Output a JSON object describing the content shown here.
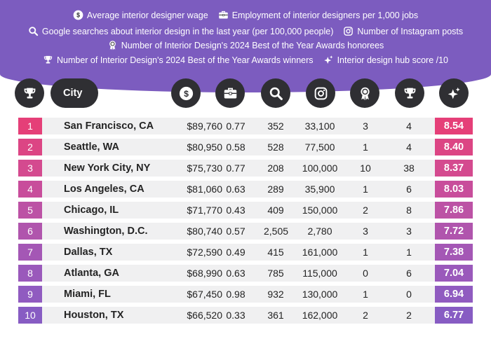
{
  "legend": {
    "wage": "Average interior designer wage",
    "employment": "Employment of interior designers per 1,000 jobs",
    "searches": "Google searches about interior design in the last year (per 100,000 people)",
    "instagram": "Number of Instagram posts",
    "honorees": "Number of Interior Design's 2024 Best of the Year Awards honorees",
    "winners": "Number of Interior Design's 2024 Best of the Year Awards winners",
    "score": "Interior design hub score /10"
  },
  "header": {
    "city_label": "City"
  },
  "icons": {
    "rank": "trophy-icon",
    "wage": "dollar-icon",
    "employment": "briefcase-icon",
    "searches": "search-icon",
    "instagram": "instagram-icon",
    "honorees": "award-ribbon-icon",
    "winners": "trophy-icon",
    "score": "sparkle-star-icon"
  },
  "colors": {
    "banner": "#7c5cbf",
    "header_dark": "#2f2f33",
    "row_bg": "#f0f0f1",
    "rank_palette": [
      "#e53f78",
      "#dc4584",
      "#d44a8f",
      "#c84d9b",
      "#bc52a5",
      "#b055ad",
      "#a457b5",
      "#9a59bb",
      "#905bc0",
      "#875cc3"
    ]
  },
  "table": {
    "rows": [
      {
        "rank": "1",
        "city": "San Francisco, CA",
        "wage": "$89,760",
        "employment": "0.77",
        "searches": "352",
        "instagram": "33,100",
        "honorees": "3",
        "winners": "4",
        "score": "8.54"
      },
      {
        "rank": "2",
        "city": "Seattle, WA",
        "wage": "$80,950",
        "employment": "0.58",
        "searches": "528",
        "instagram": "77,500",
        "honorees": "1",
        "winners": "4",
        "score": "8.40"
      },
      {
        "rank": "3",
        "city": "New York City, NY",
        "wage": "$75,730",
        "employment": "0.77",
        "searches": "208",
        "instagram": "100,000",
        "honorees": "10",
        "winners": "38",
        "score": "8.37"
      },
      {
        "rank": "4",
        "city": "Los Angeles, CA",
        "wage": "$81,060",
        "employment": "0.63",
        "searches": "289",
        "instagram": "35,900",
        "honorees": "1",
        "winners": "6",
        "score": "8.03"
      },
      {
        "rank": "5",
        "city": "Chicago, IL",
        "wage": "$71,770",
        "employment": "0.43",
        "searches": "409",
        "instagram": "150,000",
        "honorees": "2",
        "winners": "8",
        "score": "7.86"
      },
      {
        "rank": "6",
        "city": "Washington, D.C.",
        "wage": "$80,740",
        "employment": "0.57",
        "searches": "2,505",
        "instagram": "2,780",
        "honorees": "3",
        "winners": "3",
        "score": "7.72"
      },
      {
        "rank": "7",
        "city": "Dallas, TX",
        "wage": "$72,590",
        "employment": "0.49",
        "searches": "415",
        "instagram": "161,000",
        "honorees": "1",
        "winners": "1",
        "score": "7.38"
      },
      {
        "rank": "8",
        "city": "Atlanta, GA",
        "wage": "$68,990",
        "employment": "0.63",
        "searches": "785",
        "instagram": "115,000",
        "honorees": "0",
        "winners": "6",
        "score": "7.04"
      },
      {
        "rank": "9",
        "city": "Miami, FL",
        "wage": "$67,450",
        "employment": "0.98",
        "searches": "932",
        "instagram": "130,000",
        "honorees": "1",
        "winners": "0",
        "score": "6.94"
      },
      {
        "rank": "10",
        "city": "Houston, TX",
        "wage": "$66,520",
        "employment": "0.33",
        "searches": "361",
        "instagram": "162,000",
        "honorees": "2",
        "winners": "2",
        "score": "6.77"
      }
    ]
  }
}
